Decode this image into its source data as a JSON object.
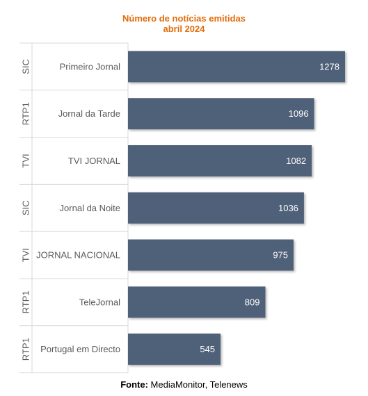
{
  "chart_data": {
    "type": "bar",
    "orientation": "horizontal",
    "title": "Número de notícias emitidas",
    "subtitle": "abril 2024",
    "categories": [
      "Primeiro Jornal",
      "Jornal da Tarde",
      "TVI JORNAL",
      "Jornal da Noite",
      "JORNAL NACIONAL",
      "TeleJornal",
      "Portugal em Directo"
    ],
    "groups": [
      "SIC",
      "RTP1",
      "TVI",
      "SIC",
      "TVI",
      "RTP1",
      "RTP1"
    ],
    "values": [
      1278,
      1096,
      1082,
      1036,
      975,
      809,
      545
    ],
    "xlim": [
      0,
      1300
    ],
    "grid": false,
    "legend": "none",
    "data_labels": true
  },
  "source": {
    "label": "Fonte:",
    "text": " MediaMonitor, Telenews"
  },
  "colors": {
    "title": "#e36c0a",
    "bar": "#4f6179",
    "bar_label": "#ffffff",
    "axis_text": "#595959",
    "grid_line": "#d9d9d9"
  }
}
